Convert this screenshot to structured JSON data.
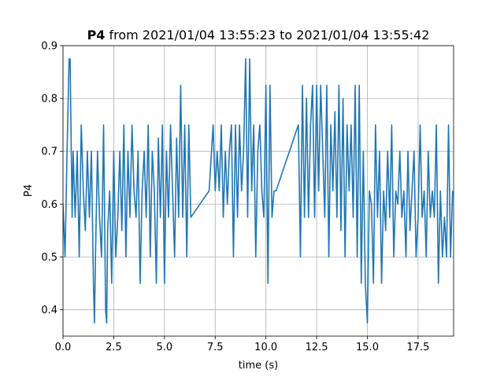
{
  "chart_data": {
    "type": "line",
    "title_bold": "P4",
    "title_rest": " from 2021/01/04 13:55:23 to 2021/01/04 13:55:42",
    "xlabel": "time (s)",
    "ylabel": "P4",
    "xlim": [
      0,
      19.25
    ],
    "ylim": [
      0.35,
      0.9
    ],
    "xticks": [
      0,
      2.5,
      5,
      7.5,
      10,
      12.5,
      15,
      17.5
    ],
    "xtick_labels": [
      "0.0",
      "2.5",
      "5.0",
      "7.5",
      "10.0",
      "12.5",
      "15.0",
      "17.5"
    ],
    "yticks": [
      0.4,
      0.5,
      0.6,
      0.7,
      0.8,
      0.9
    ],
    "ytick_labels": [
      "0.4",
      "0.5",
      "0.6",
      "0.7",
      "0.8",
      "0.9"
    ],
    "grid": true,
    "line_color": "#1f77b4",
    "series": [
      {
        "x": [
          0.0,
          0.1,
          0.2,
          0.3,
          0.35,
          0.45,
          0.5,
          0.6,
          0.7,
          0.8,
          0.9,
          1.0,
          1.1,
          1.2,
          1.3,
          1.4,
          1.5,
          1.55,
          1.6,
          1.7,
          1.8,
          1.9,
          2.0,
          2.1,
          2.15,
          2.2,
          2.3,
          2.4,
          2.5,
          2.6,
          2.7,
          2.8,
          2.9,
          3.0,
          3.1,
          3.2,
          3.3,
          3.4,
          3.5,
          3.6,
          3.7,
          3.8,
          3.9,
          4.0,
          4.1,
          4.2,
          4.3,
          4.4,
          4.5,
          4.6,
          4.7,
          4.8,
          4.9,
          5.0,
          5.1,
          5.2,
          5.3,
          5.4,
          5.5,
          5.6,
          5.7,
          5.8,
          5.9,
          6.0,
          6.1,
          6.2,
          6.3,
          7.2,
          7.4,
          7.5,
          7.6,
          7.7,
          7.8,
          7.9,
          8.0,
          8.1,
          8.2,
          8.3,
          8.4,
          8.5,
          8.6,
          8.7,
          8.8,
          8.9,
          9.0,
          9.1,
          9.2,
          9.3,
          9.4,
          9.5,
          9.6,
          9.7,
          9.8,
          9.9,
          10.0,
          10.1,
          10.2,
          10.3,
          10.4,
          10.5,
          11.6,
          11.7,
          11.8,
          11.9,
          12.0,
          12.1,
          12.2,
          12.3,
          12.4,
          12.5,
          12.6,
          12.7,
          12.8,
          12.9,
          13.0,
          13.1,
          13.2,
          13.3,
          13.4,
          13.5,
          13.6,
          13.7,
          13.8,
          13.9,
          14.0,
          14.1,
          14.2,
          14.3,
          14.4,
          14.5,
          14.6,
          14.7,
          14.8,
          14.9,
          15.0,
          15.1,
          15.2,
          15.3,
          15.4,
          15.5,
          15.6,
          15.7,
          15.8,
          15.9,
          16.0,
          16.1,
          16.2,
          16.3,
          16.4,
          16.5,
          16.6,
          16.7,
          16.8,
          16.9,
          17.0,
          17.1,
          17.2,
          17.3,
          17.4,
          17.5,
          17.6,
          17.7,
          17.8,
          17.9,
          18.0,
          18.1,
          18.2,
          18.3,
          18.4,
          18.5,
          18.6,
          18.7,
          18.8,
          18.9,
          19.0,
          19.1,
          19.2
        ],
        "y": [
          0.6,
          0.5,
          0.7,
          0.875,
          0.875,
          0.575,
          0.7,
          0.575,
          0.7,
          0.5,
          0.75,
          0.625,
          0.55,
          0.7,
          0.575,
          0.7,
          0.45,
          0.375,
          0.5,
          0.7,
          0.575,
          0.5,
          0.75,
          0.4,
          0.375,
          0.55,
          0.625,
          0.45,
          0.7,
          0.5,
          0.575,
          0.7,
          0.55,
          0.75,
          0.5,
          0.7,
          0.575,
          0.75,
          0.625,
          0.575,
          0.7,
          0.45,
          0.625,
          0.7,
          0.575,
          0.75,
          0.5,
          0.7,
          0.625,
          0.45,
          0.725,
          0.575,
          0.75,
          0.45,
          0.7,
          0.575,
          0.75,
          0.625,
          0.5,
          0.725,
          0.575,
          0.825,
          0.575,
          0.75,
          0.5,
          0.75,
          0.575,
          0.625,
          0.75,
          0.625,
          0.7,
          0.625,
          0.75,
          0.575,
          0.7,
          0.6,
          0.7,
          0.75,
          0.5,
          0.75,
          0.575,
          0.75,
          0.625,
          0.7,
          0.875,
          0.575,
          0.875,
          0.625,
          0.75,
          0.5,
          0.7,
          0.75,
          0.625,
          0.575,
          0.825,
          0.45,
          0.825,
          0.575,
          0.625,
          0.625,
          0.75,
          0.5,
          0.825,
          0.575,
          0.8,
          0.575,
          0.75,
          0.825,
          0.575,
          0.825,
          0.625,
          0.825,
          0.7,
          0.575,
          0.825,
          0.5,
          0.75,
          0.625,
          0.775,
          0.575,
          0.825,
          0.55,
          0.8,
          0.5,
          0.75,
          0.625,
          0.75,
          0.575,
          0.825,
          0.5,
          0.825,
          0.45,
          0.7,
          0.45,
          0.375,
          0.625,
          0.6,
          0.45,
          0.75,
          0.575,
          0.7,
          0.45,
          0.625,
          0.55,
          0.7,
          0.575,
          0.75,
          0.5,
          0.625,
          0.6,
          0.7,
          0.575,
          0.625,
          0.5,
          0.7,
          0.55,
          0.625,
          0.7,
          0.5,
          0.575,
          0.75,
          0.575,
          0.625,
          0.5,
          0.7,
          0.575,
          0.625,
          0.575,
          0.75,
          0.45,
          0.625,
          0.5,
          0.575,
          0.5,
          0.75,
          0.5,
          0.625
        ]
      }
    ]
  }
}
